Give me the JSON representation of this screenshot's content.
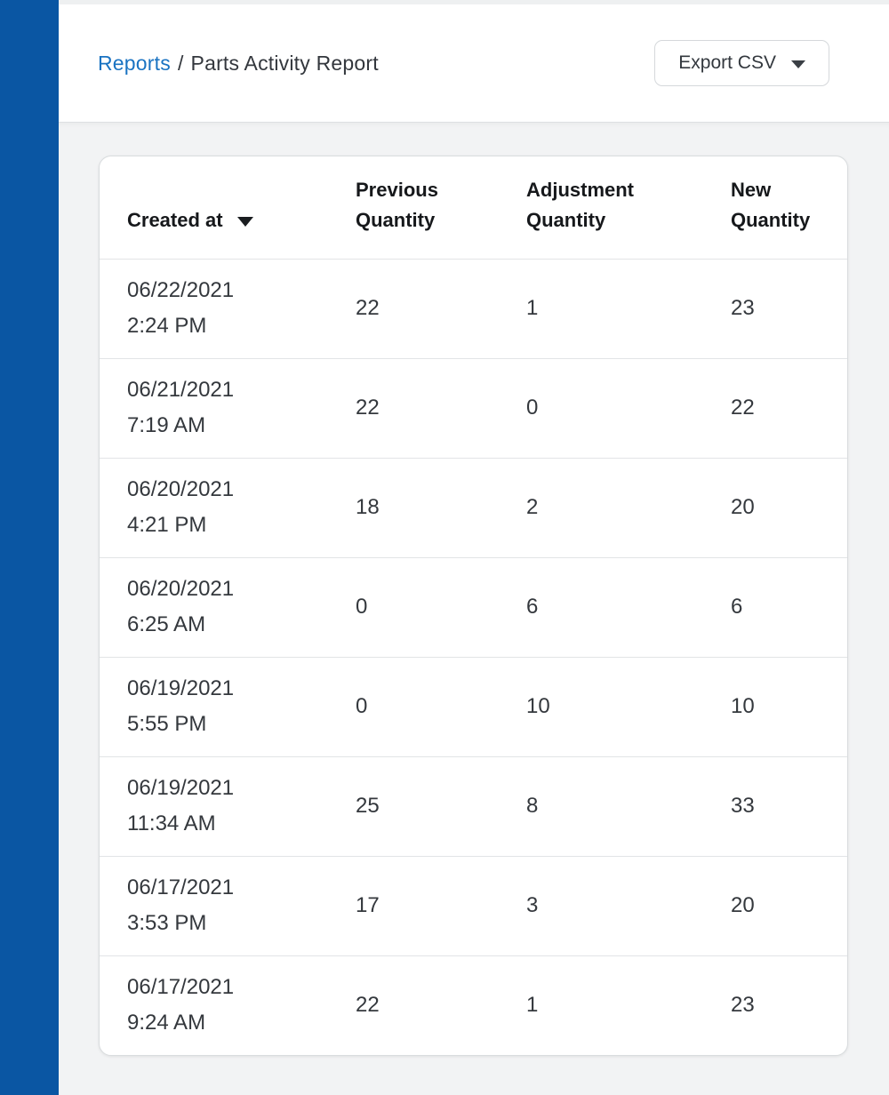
{
  "breadcrumb": {
    "link_label": "Reports",
    "separator": "/",
    "current_label": "Parts Activity Report"
  },
  "toolbar": {
    "export_label": "Export CSV"
  },
  "table": {
    "sort": {
      "column": "Created at",
      "direction": "desc"
    },
    "columns": [
      {
        "label": "Created at"
      },
      {
        "label": "Previous Quantity"
      },
      {
        "label": "Adjustment Quantity"
      },
      {
        "label": "New Quantity"
      }
    ],
    "rows": [
      {
        "date": "06/22/2021",
        "time": "2:24 PM",
        "previous": "22",
        "adjustment": "1",
        "new": "23"
      },
      {
        "date": "06/21/2021",
        "time": "7:19 AM",
        "previous": "22",
        "adjustment": "0",
        "new": "22"
      },
      {
        "date": "06/20/2021",
        "time": "4:21 PM",
        "previous": "18",
        "adjustment": "2",
        "new": "20"
      },
      {
        "date": "06/20/2021",
        "time": "6:25 AM",
        "previous": "0",
        "adjustment": "6",
        "new": "6"
      },
      {
        "date": "06/19/2021",
        "time": "5:55 PM",
        "previous": "0",
        "adjustment": "10",
        "new": "10"
      },
      {
        "date": "06/19/2021",
        "time": "11:34 AM",
        "previous": "25",
        "adjustment": "8",
        "new": "33"
      },
      {
        "date": "06/17/2021",
        "time": "3:53 PM",
        "previous": "17",
        "adjustment": "3",
        "new": "20"
      },
      {
        "date": "06/17/2021",
        "time": "9:24 AM",
        "previous": "22",
        "adjustment": "1",
        "new": "23"
      }
    ]
  },
  "colors": {
    "sidebar": "#0a56a3",
    "link": "#1a73c2",
    "page_background": "#f2f3f4",
    "card_border": "#d9dcde",
    "row_divider": "#e2e4e6",
    "header_text": "#16181b",
    "cell_text": "#34383d"
  }
}
